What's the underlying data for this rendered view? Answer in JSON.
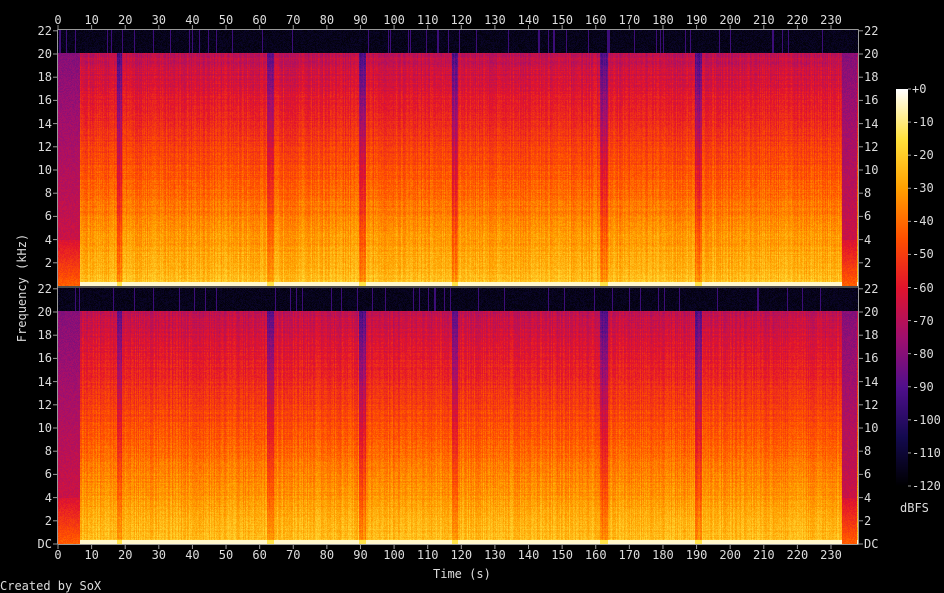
{
  "chart_data": {
    "type": "heatmap",
    "title": "",
    "xlabel": "Time (s)",
    "ylabel": "Frequency (kHz)",
    "channels": 2,
    "xlim": [
      0,
      237.7
    ],
    "ylim": [
      0,
      22.05
    ],
    "x_ticks": [
      0,
      10,
      20,
      30,
      40,
      50,
      60,
      70,
      80,
      90,
      100,
      110,
      120,
      130,
      140,
      150,
      160,
      170,
      180,
      190,
      200,
      210,
      220,
      230
    ],
    "y_ticks": [
      "DC",
      "2",
      "4",
      "6",
      "8",
      "10",
      "12",
      "14",
      "16",
      "18",
      "20",
      "22"
    ],
    "y_ticks_upper": [
      "2",
      "4",
      "6",
      "8",
      "10",
      "12",
      "14",
      "16",
      "18",
      "20",
      "22"
    ],
    "lowpass_khz": 20,
    "quiet_segments_s": [
      [
        0,
        6.5
      ],
      [
        17.5,
        19
      ],
      [
        62,
        64
      ],
      [
        89.5,
        91.5
      ],
      [
        117,
        119
      ],
      [
        161,
        163.5
      ],
      [
        189.5,
        191.5
      ],
      [
        233,
        237.7
      ]
    ],
    "colorbar": {
      "label": "dBFS",
      "range": [
        -120,
        0
      ],
      "ticks": [
        "+0",
        "-10",
        "-20",
        "-30",
        "-40",
        "-50",
        "-60",
        "-70",
        "-80",
        "-90",
        "-100",
        "-110",
        "-120"
      ],
      "colors": [
        "#000000",
        "#1a0a5c",
        "#5a0a8a",
        "#a0106a",
        "#e0102a",
        "#ff5000",
        "#ffa000",
        "#ffe040",
        "#ffffff"
      ]
    }
  },
  "footer": "Created by SoX"
}
